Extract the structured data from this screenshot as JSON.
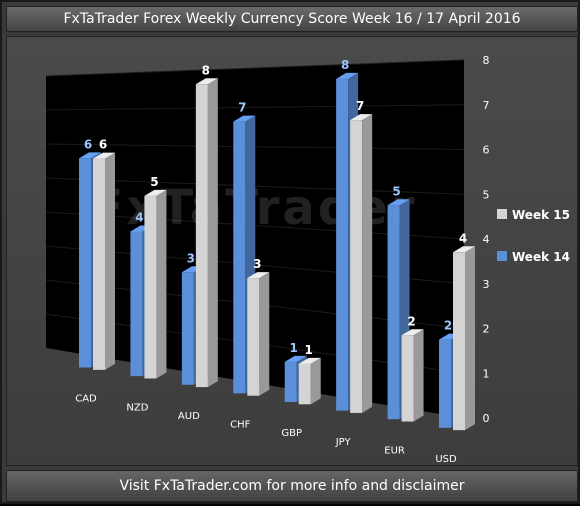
{
  "header": {
    "title": "FxTaTrader Forex Weekly Currency Score Week 16 / 17 April 2016"
  },
  "footer": {
    "text": "Visit FxTaTrader.com for more info and disclaimer"
  },
  "watermark": "FxTaTrader",
  "colors": {
    "week14": "#5b8fd9",
    "week15": "#d4d4d4",
    "wall": "#000000"
  },
  "chart_data": {
    "type": "bar",
    "categories": [
      "CAD",
      "NZD",
      "AUD",
      "CHF",
      "GBP",
      "JPY",
      "EUR",
      "USD"
    ],
    "series": [
      {
        "name": "Week 14",
        "values": [
          6,
          4,
          3,
          7,
          1,
          8,
          5,
          2
        ]
      },
      {
        "name": "Week 15",
        "values": [
          6,
          5,
          8,
          3,
          1,
          7,
          2,
          4
        ]
      }
    ],
    "ylim": [
      0,
      8
    ],
    "yticks": [
      "0",
      "1",
      "2",
      "3",
      "4",
      "5",
      "6",
      "7",
      "8"
    ],
    "legend": {
      "placement": "right"
    }
  }
}
